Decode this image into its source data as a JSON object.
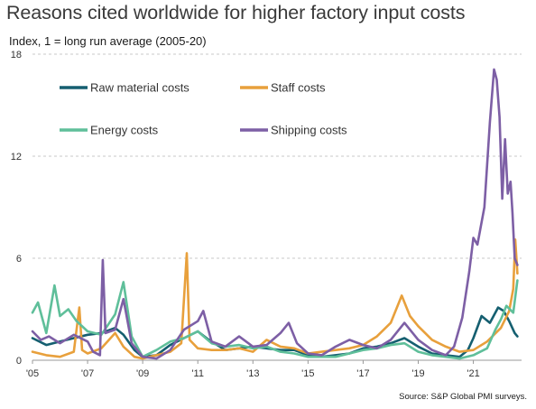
{
  "chart_data": {
    "type": "line",
    "title": "Reasons cited worldwide for higher factory input costs",
    "subtitle": "Index, 1 = long run average (2005-20)",
    "source": "Source: S&P Global PMI surveys.",
    "ylim": [
      0,
      18
    ],
    "yticks": [
      "0",
      "6",
      "12",
      "18"
    ],
    "xlim": [
      2005,
      2022.75
    ],
    "xticks": [
      {
        "v": 2005,
        "label": "'05"
      },
      {
        "v": 2007,
        "label": "'07"
      },
      {
        "v": 2009,
        "label": "'09"
      },
      {
        "v": 2011,
        "label": "'11"
      },
      {
        "v": 2013,
        "label": "'13"
      },
      {
        "v": 2015,
        "label": "'15"
      },
      {
        "v": 2017,
        "label": "'17"
      },
      {
        "v": 2019,
        "label": "'19"
      },
      {
        "v": 2021,
        "label": "'21"
      }
    ],
    "grid": "horizontal dashed",
    "series": [
      {
        "name": "Raw material costs",
        "color": "#155f70",
        "legend_row": 0,
        "legend_col": 0,
        "points": [
          [
            2005,
            1.3
          ],
          [
            2005.5,
            0.9
          ],
          [
            2006,
            1.1
          ],
          [
            2006.5,
            1.3
          ],
          [
            2007,
            1.5
          ],
          [
            2007.5,
            1.6
          ],
          [
            2008,
            1.9
          ],
          [
            2008.3,
            1.5
          ],
          [
            2008.7,
            0.6
          ],
          [
            2009,
            0.2
          ],
          [
            2009.5,
            0.3
          ],
          [
            2010,
            0.9
          ],
          [
            2010.5,
            1.3
          ],
          [
            2011,
            1.7
          ],
          [
            2011.4,
            1.2
          ],
          [
            2011.8,
            0.8
          ],
          [
            2012,
            0.6
          ],
          [
            2012.5,
            0.7
          ],
          [
            2013,
            0.8
          ],
          [
            2013.5,
            0.7
          ],
          [
            2014,
            0.6
          ],
          [
            2014.5,
            0.6
          ],
          [
            2015,
            0.3
          ],
          [
            2015.5,
            0.2
          ],
          [
            2016,
            0.3
          ],
          [
            2016.5,
            0.4
          ],
          [
            2017,
            0.7
          ],
          [
            2017.5,
            0.8
          ],
          [
            2018,
            1.0
          ],
          [
            2018.5,
            1.3
          ],
          [
            2019,
            0.8
          ],
          [
            2019.5,
            0.4
          ],
          [
            2020,
            0.3
          ],
          [
            2020.5,
            0.2
          ],
          [
            2020.8,
            0.6
          ],
          [
            2021,
            1.3
          ],
          [
            2021.3,
            2.6
          ],
          [
            2021.6,
            2.2
          ],
          [
            2021.9,
            3.1
          ],
          [
            2022.1,
            2.9
          ],
          [
            2022.3,
            2.3
          ],
          [
            2022.5,
            1.6
          ],
          [
            2022.6,
            1.4
          ]
        ]
      },
      {
        "name": "Staff costs",
        "color": "#e8a03c",
        "legend_row": 0,
        "legend_col": 1,
        "points": [
          [
            2005,
            0.5
          ],
          [
            2005.5,
            0.3
          ],
          [
            2006,
            0.2
          ],
          [
            2006.5,
            0.5
          ],
          [
            2006.7,
            3.1
          ],
          [
            2006.8,
            0.6
          ],
          [
            2007,
            0.4
          ],
          [
            2007.5,
            0.7
          ],
          [
            2008,
            1.6
          ],
          [
            2008.3,
            0.8
          ],
          [
            2008.7,
            0.2
          ],
          [
            2009,
            0.1
          ],
          [
            2009.5,
            0.3
          ],
          [
            2010,
            0.5
          ],
          [
            2010.4,
            1.0
          ],
          [
            2010.6,
            6.3
          ],
          [
            2010.7,
            1.2
          ],
          [
            2011,
            0.7
          ],
          [
            2011.5,
            0.6
          ],
          [
            2012,
            0.6
          ],
          [
            2012.5,
            0.7
          ],
          [
            2013,
            0.5
          ],
          [
            2013.5,
            1.2
          ],
          [
            2014,
            0.8
          ],
          [
            2014.5,
            0.7
          ],
          [
            2015,
            0.4
          ],
          [
            2015.5,
            0.5
          ],
          [
            2016,
            0.6
          ],
          [
            2016.5,
            0.7
          ],
          [
            2017,
            0.9
          ],
          [
            2017.5,
            1.4
          ],
          [
            2018,
            2.2
          ],
          [
            2018.4,
            3.8
          ],
          [
            2018.7,
            2.6
          ],
          [
            2019,
            2.0
          ],
          [
            2019.5,
            1.2
          ],
          [
            2020,
            0.8
          ],
          [
            2020.5,
            0.5
          ],
          [
            2021,
            0.6
          ],
          [
            2021.5,
            1.1
          ],
          [
            2022,
            1.9
          ],
          [
            2022.3,
            2.9
          ],
          [
            2022.45,
            4.2
          ],
          [
            2022.52,
            7.1
          ],
          [
            2022.6,
            5.1
          ]
        ]
      },
      {
        "name": "Energy costs",
        "color": "#5fbf9a",
        "legend_row": 1,
        "legend_col": 0,
        "points": [
          [
            2005,
            2.8
          ],
          [
            2005.2,
            3.4
          ],
          [
            2005.5,
            1.6
          ],
          [
            2005.8,
            4.4
          ],
          [
            2006,
            2.6
          ],
          [
            2006.3,
            3.0
          ],
          [
            2006.6,
            2.3
          ],
          [
            2007,
            1.7
          ],
          [
            2007.5,
            1.5
          ],
          [
            2008,
            2.7
          ],
          [
            2008.3,
            4.6
          ],
          [
            2008.6,
            1.4
          ],
          [
            2009,
            0.2
          ],
          [
            2009.5,
            0.6
          ],
          [
            2010,
            1.1
          ],
          [
            2010.5,
            1.3
          ],
          [
            2011,
            1.7
          ],
          [
            2011.5,
            1.0
          ],
          [
            2012,
            0.8
          ],
          [
            2012.5,
            0.9
          ],
          [
            2013,
            0.7
          ],
          [
            2013.5,
            0.8
          ],
          [
            2014,
            0.5
          ],
          [
            2014.5,
            0.4
          ],
          [
            2015,
            0.2
          ],
          [
            2015.5,
            0.2
          ],
          [
            2016,
            0.2
          ],
          [
            2016.5,
            0.4
          ],
          [
            2017,
            0.6
          ],
          [
            2017.5,
            0.7
          ],
          [
            2018,
            0.9
          ],
          [
            2018.5,
            1.0
          ],
          [
            2019,
            0.5
          ],
          [
            2019.5,
            0.3
          ],
          [
            2020,
            0.2
          ],
          [
            2020.5,
            0.1
          ],
          [
            2021,
            0.3
          ],
          [
            2021.5,
            0.7
          ],
          [
            2021.8,
            1.8
          ],
          [
            2022,
            2.4
          ],
          [
            2022.2,
            3.2
          ],
          [
            2022.45,
            2.8
          ],
          [
            2022.6,
            4.7
          ]
        ]
      },
      {
        "name": "Shipping costs",
        "color": "#7d5fa5",
        "legend_row": 1,
        "legend_col": 1,
        "points": [
          [
            2005,
            1.7
          ],
          [
            2005.3,
            1.2
          ],
          [
            2005.6,
            1.4
          ],
          [
            2006,
            1.0
          ],
          [
            2006.5,
            1.5
          ],
          [
            2007,
            1.1
          ],
          [
            2007.2,
            0.5
          ],
          [
            2007.45,
            0.3
          ],
          [
            2007.55,
            5.9
          ],
          [
            2007.65,
            1.6
          ],
          [
            2008,
            1.8
          ],
          [
            2008.3,
            3.6
          ],
          [
            2008.6,
            1.0
          ],
          [
            2009,
            0.2
          ],
          [
            2009.5,
            0.1
          ],
          [
            2010,
            0.6
          ],
          [
            2010.5,
            1.8
          ],
          [
            2011,
            2.3
          ],
          [
            2011.2,
            2.9
          ],
          [
            2011.5,
            1.1
          ],
          [
            2012,
            0.8
          ],
          [
            2012.5,
            1.4
          ],
          [
            2013,
            0.8
          ],
          [
            2013.5,
            0.9
          ],
          [
            2014,
            1.6
          ],
          [
            2014.3,
            2.2
          ],
          [
            2014.6,
            1.0
          ],
          [
            2015,
            0.4
          ],
          [
            2015.5,
            0.3
          ],
          [
            2016,
            0.8
          ],
          [
            2016.5,
            1.2
          ],
          [
            2017,
            0.9
          ],
          [
            2017.5,
            0.7
          ],
          [
            2018,
            1.2
          ],
          [
            2018.5,
            2.2
          ],
          [
            2019,
            1.2
          ],
          [
            2019.5,
            0.6
          ],
          [
            2020,
            0.3
          ],
          [
            2020.3,
            0.8
          ],
          [
            2020.6,
            2.5
          ],
          [
            2020.85,
            5.2
          ],
          [
            2021,
            7.2
          ],
          [
            2021.15,
            6.8
          ],
          [
            2021.4,
            9.0
          ],
          [
            2021.6,
            14.0
          ],
          [
            2021.75,
            17.1
          ],
          [
            2021.85,
            16.5
          ],
          [
            2021.95,
            14.3
          ],
          [
            2022.05,
            9.5
          ],
          [
            2022.15,
            13.0
          ],
          [
            2022.25,
            9.8
          ],
          [
            2022.35,
            10.5
          ],
          [
            2022.42,
            8.7
          ],
          [
            2022.5,
            6.0
          ],
          [
            2022.6,
            5.6
          ]
        ]
      }
    ]
  }
}
